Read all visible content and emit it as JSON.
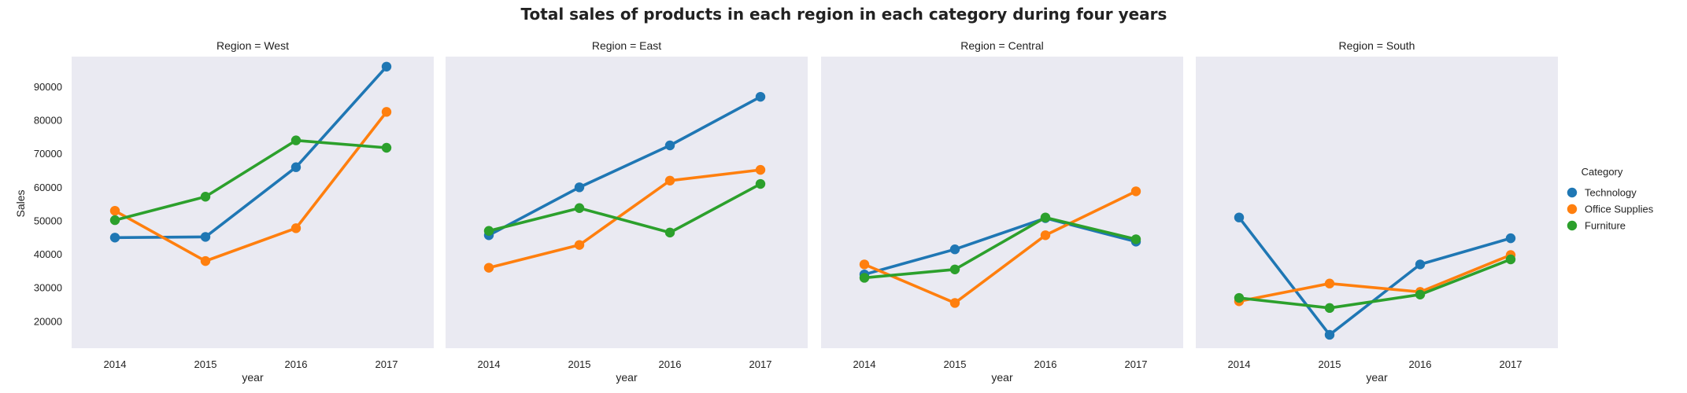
{
  "chart_data": {
    "type": "line",
    "title": "Total sales of products in each region in each category during four years",
    "xlabel": "year",
    "ylabel": "Sales",
    "x": [
      "2014",
      "2015",
      "2016",
      "2017"
    ],
    "ylim": [
      12000,
      99000
    ],
    "yticks": [
      20000,
      30000,
      40000,
      50000,
      60000,
      70000,
      80000,
      90000
    ],
    "grid": false,
    "legend": {
      "title": "Category",
      "placement": "right",
      "entries": [
        "Technology",
        "Office Supplies",
        "Furniture"
      ]
    },
    "colors": {
      "Technology": "#1f77b4",
      "Office Supplies": "#ff7f0e",
      "Furniture": "#2ca02c"
    },
    "panel_background": "#eaeaf2",
    "panels": [
      {
        "title": "Region = West",
        "series": [
          {
            "name": "Technology",
            "values": [
              45000,
              45200,
              66000,
              96000
            ]
          },
          {
            "name": "Office Supplies",
            "values": [
              53000,
              38000,
              47800,
              82500
            ]
          },
          {
            "name": "Furniture",
            "values": [
              50200,
              57200,
              74000,
              71800
            ]
          }
        ]
      },
      {
        "title": "Region = East",
        "series": [
          {
            "name": "Technology",
            "values": [
              45700,
              60000,
              72500,
              87000
            ]
          },
          {
            "name": "Office Supplies",
            "values": [
              36000,
              42800,
              62000,
              65200
            ]
          },
          {
            "name": "Furniture",
            "values": [
              47000,
              53800,
              46500,
              61000
            ]
          }
        ]
      },
      {
        "title": "Region = Central",
        "series": [
          {
            "name": "Technology",
            "values": [
              34000,
              41500,
              50800,
              43800
            ]
          },
          {
            "name": "Office Supplies",
            "values": [
              37000,
              25500,
              45700,
              58800
            ]
          },
          {
            "name": "Furniture",
            "values": [
              33000,
              35500,
              51000,
              44500
            ]
          }
        ]
      },
      {
        "title": "Region = South",
        "series": [
          {
            "name": "Technology",
            "values": [
              51000,
              16000,
              37000,
              44800
            ]
          },
          {
            "name": "Office Supplies",
            "values": [
              26000,
              31300,
              28800,
              39800
            ]
          },
          {
            "name": "Furniture",
            "values": [
              27000,
              24000,
              28000,
              38500
            ]
          }
        ]
      }
    ]
  }
}
